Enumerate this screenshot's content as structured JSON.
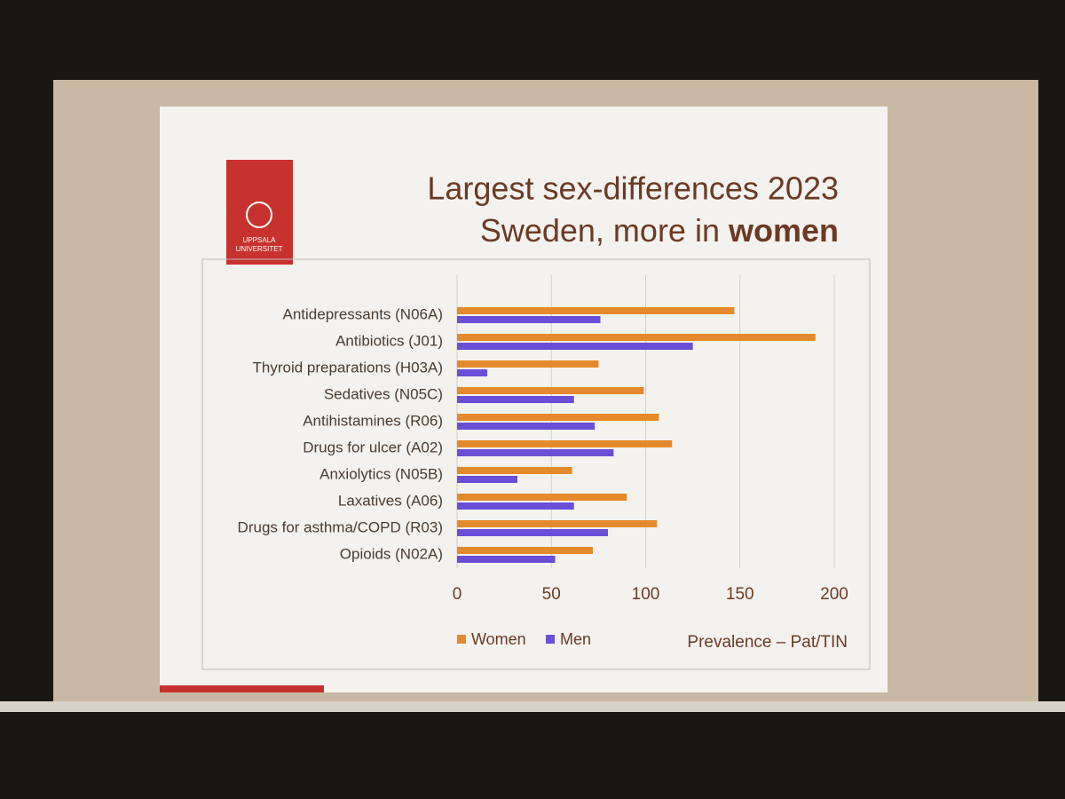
{
  "chart_data": {
    "type": "hbar",
    "title": "Largest sex-differences 2023",
    "subtitle": "Sweden, more in",
    "subtitle_emphasis": "women",
    "logo": [
      "UPPSALA",
      "UNIVERSITET"
    ],
    "x_label": "Prevalence – Pat/TIN",
    "categories": [
      "Antidepressants (N06A)",
      "Antibiotics (J01)",
      "Thyroid preparations (H03A)",
      "Sedatives (N05C)",
      "Antihistamines (R06)",
      "Drugs for ulcer (A02)",
      "Anxiolytics (N05B)",
      "Laxatives (A06)",
      "Drugs for asthma/COPD (R03)",
      "Opioids (N02A)"
    ],
    "series": [
      {
        "name": "Women",
        "color": "#e48a2c",
        "values": [
          147,
          190,
          75,
          99,
          107,
          114,
          61,
          90,
          106,
          72
        ]
      },
      {
        "name": "Men",
        "color": "#6a4fd6",
        "values": [
          76,
          125,
          16,
          62,
          73,
          83,
          32,
          62,
          80,
          52
        ]
      }
    ],
    "xlim": [
      0,
      200
    ],
    "xticks": [
      0,
      50,
      100,
      150,
      200
    ],
    "grid": true
  }
}
